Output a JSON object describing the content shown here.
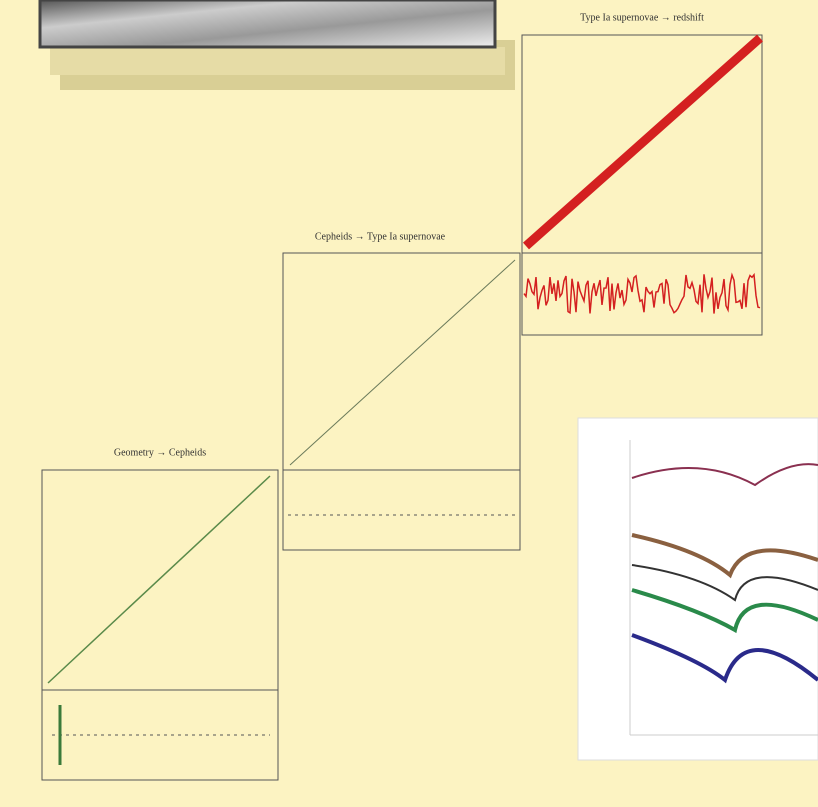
{
  "panels": [
    {
      "title": "Geometry → Cepheids"
    },
    {
      "title": "Cepheids → Type Ia supernovae"
    },
    {
      "title": "Type Ia supernovae → redshift"
    }
  ]
}
